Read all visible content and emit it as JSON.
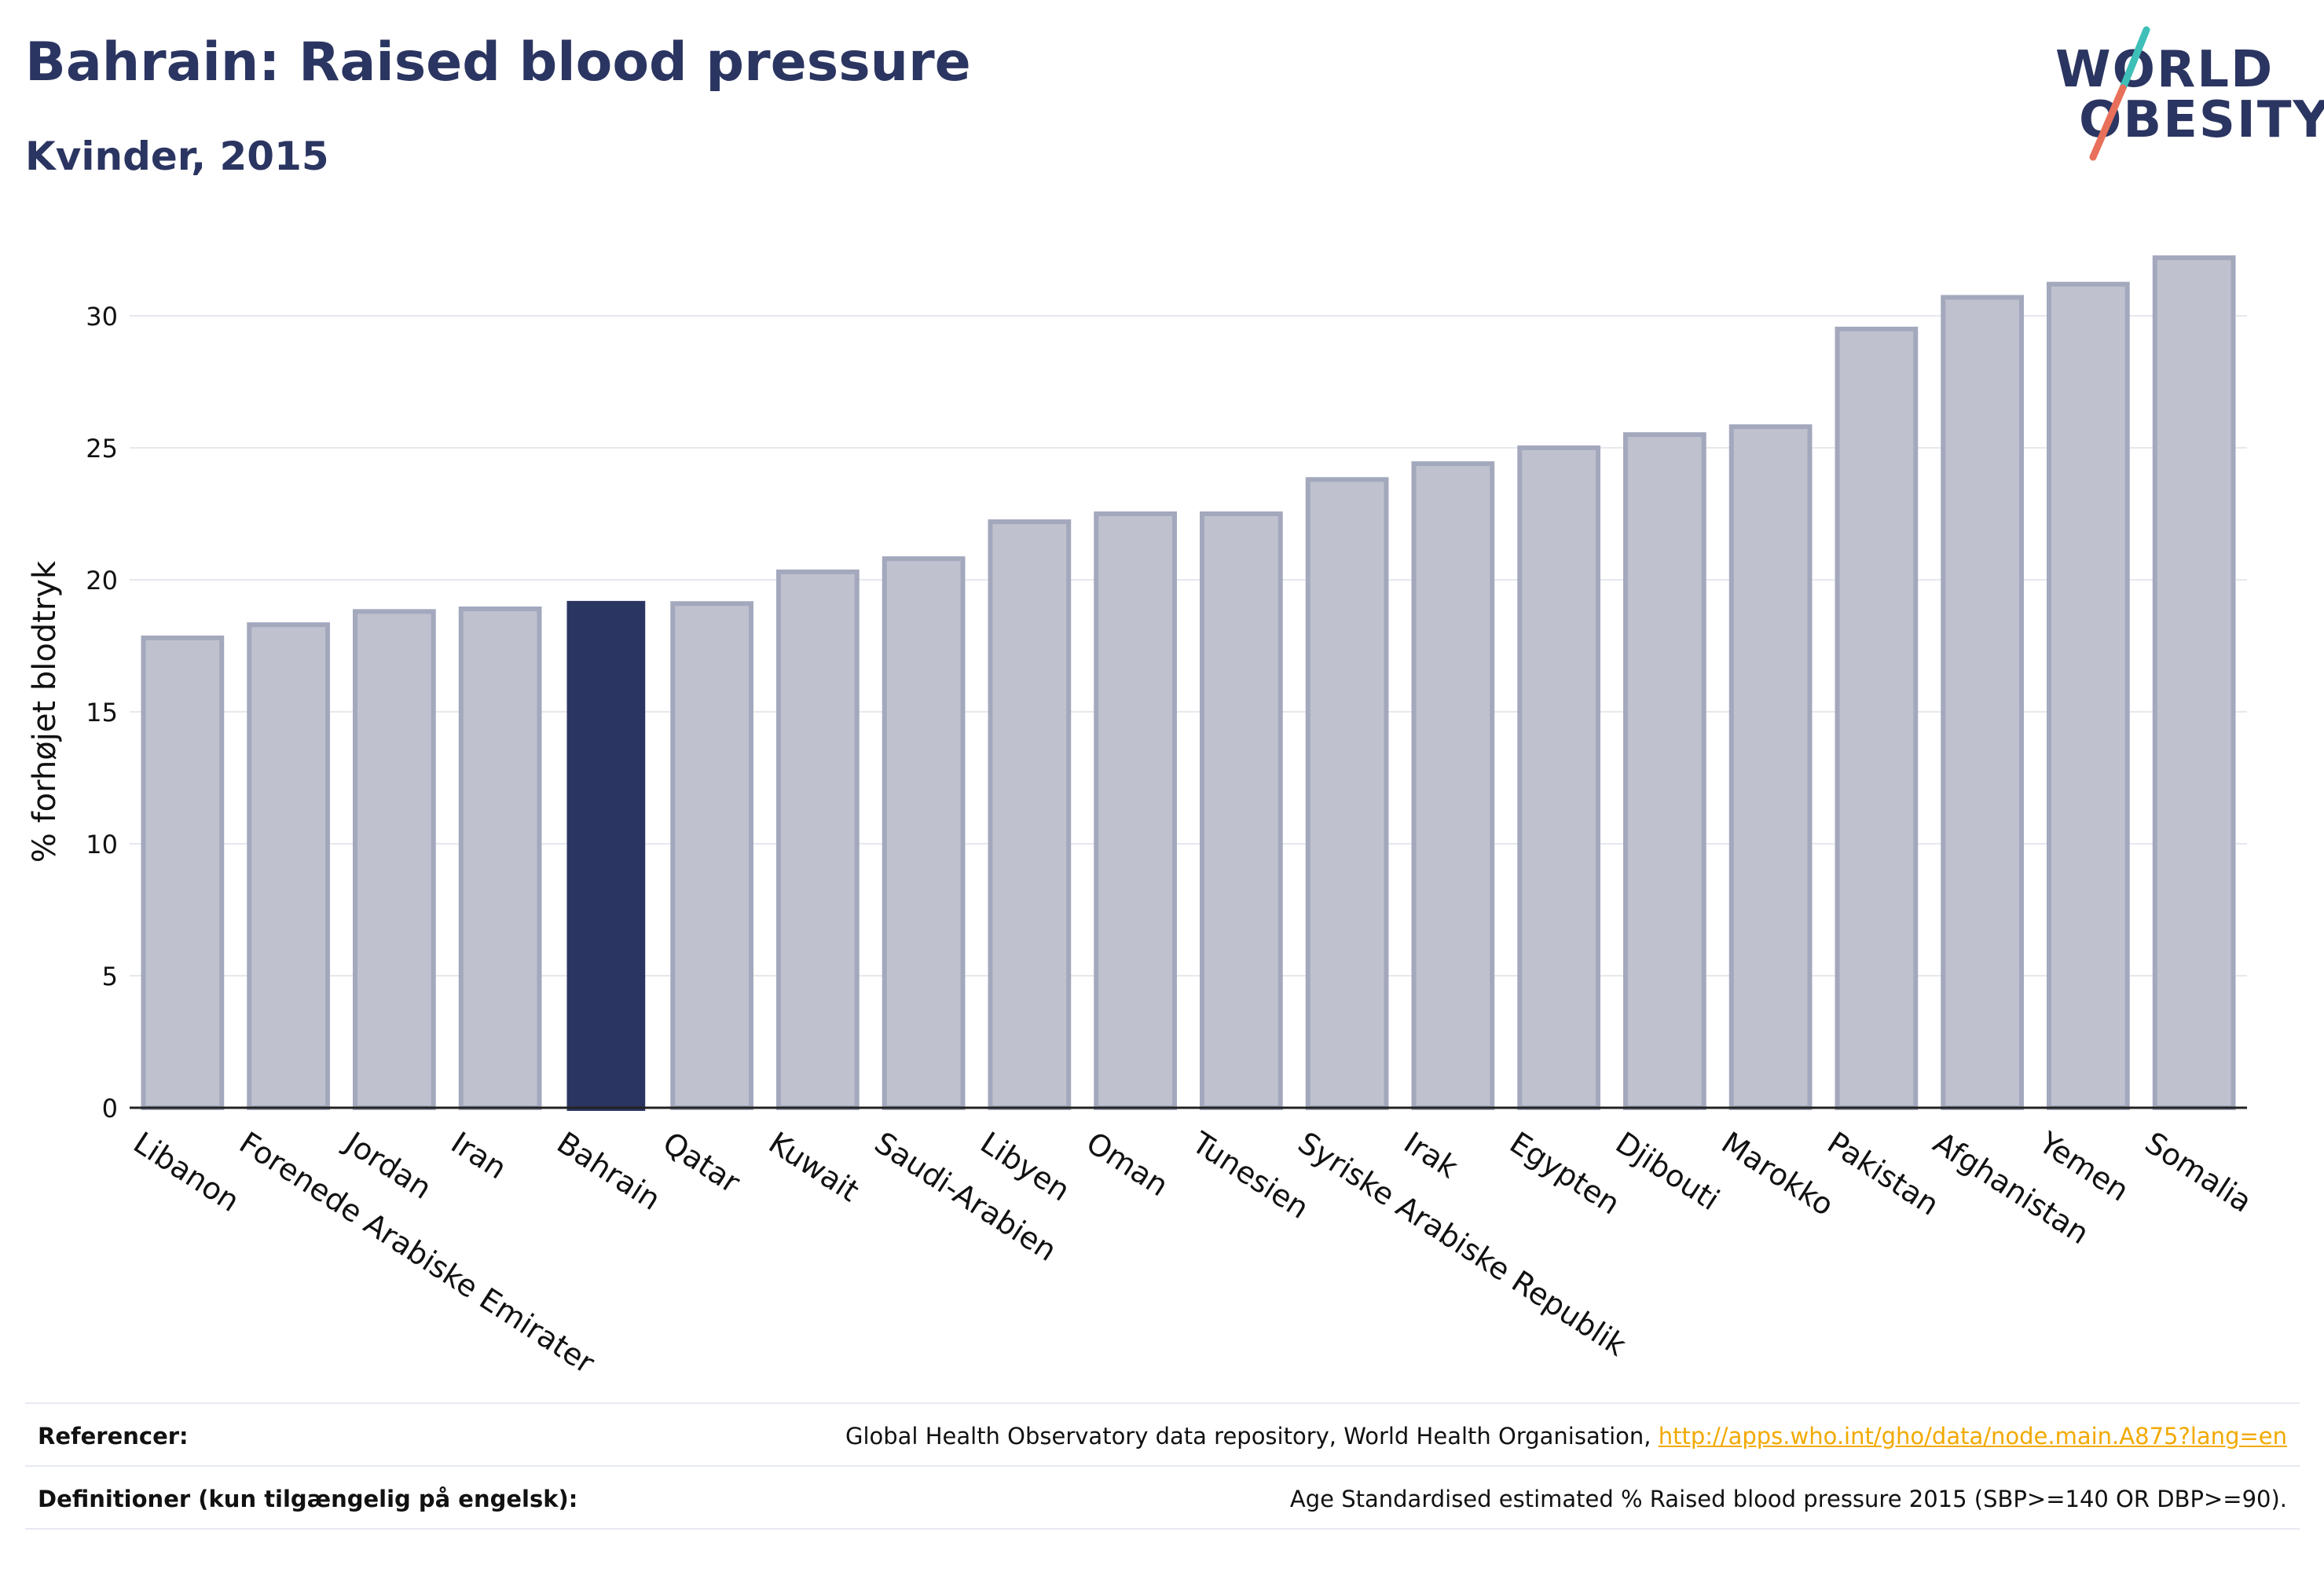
{
  "header": {
    "title": "Bahrain: Raised blood pressure",
    "subtitle": "Kvinder, 2015"
  },
  "logo": {
    "line1": "WORLD",
    "line2": "OBESITY",
    "colors": {
      "text": "#2b3561",
      "slash_top": "#3ebfb8",
      "slash_bottom": "#e8705a"
    }
  },
  "chart_data": {
    "type": "bar",
    "title": "",
    "xlabel": "",
    "ylabel": "% forhøjet blodtryk",
    "ylim": [
      0,
      33
    ],
    "yticks": [
      0,
      5,
      10,
      15,
      20,
      25,
      30
    ],
    "grid": true,
    "highlight": "Bahrain",
    "colors": {
      "bar": "#bfc2ce",
      "bar_edge": "#a3a8bd",
      "highlight": "#2b3561"
    },
    "categories": [
      "Libanon",
      "Forenede Arabiske Emirater",
      "Jordan",
      "Iran",
      "Bahrain",
      "Qatar",
      "Kuwait",
      "Saudi-Arabien",
      "Libyen",
      "Oman",
      "Tunesien",
      "Syriske Arabiske Republik",
      "Irak",
      "Egypten",
      "Djibouti",
      "Marokko",
      "Pakistan",
      "Afghanistan",
      "Yemen",
      "Somalia"
    ],
    "values": [
      17.8,
      18.3,
      18.8,
      18.9,
      19.2,
      19.1,
      20.3,
      20.8,
      22.2,
      22.5,
      22.5,
      23.8,
      24.4,
      25.0,
      25.5,
      25.8,
      29.5,
      30.7,
      31.2,
      32.2
    ]
  },
  "footer": {
    "references_label": "Referencer:",
    "references_text": "Global Health Observatory data repository, World Health Organisation, ",
    "references_link": "http://apps.who.int/gho/data/node.main.A875?lang=en",
    "definitions_label": "Definitioner (kun tilgængelig på engelsk):",
    "definitions_text": "Age Standardised estimated % Raised blood pressure 2015 (SBP>=140 OR DBP>=90)."
  }
}
